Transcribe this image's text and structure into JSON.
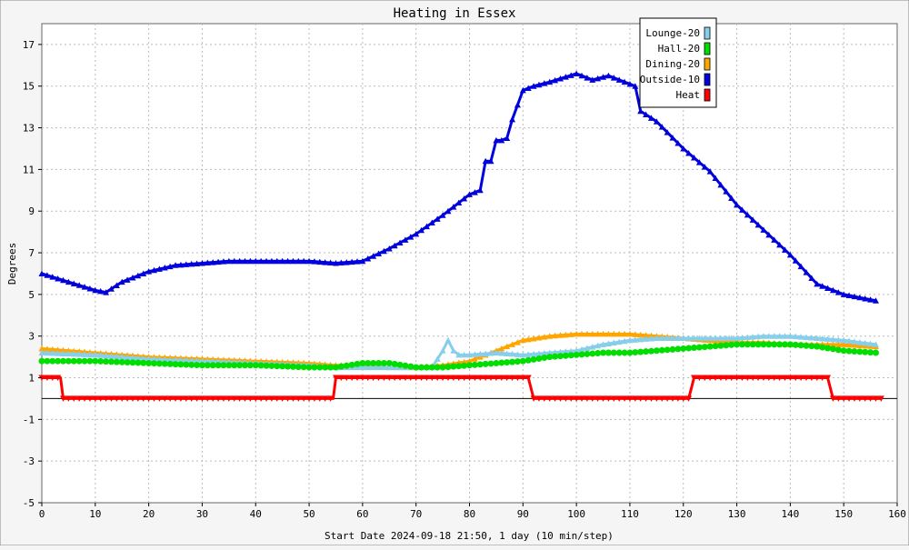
{
  "chart_data": {
    "type": "line",
    "title": "Heating in Essex",
    "xlabel": "Start Date 2024-09-18 21:50, 1 day (10 min/step)",
    "ylabel": "Degrees",
    "xlim": [
      0,
      160
    ],
    "ylim": [
      -5,
      18
    ],
    "xticks": [
      0,
      10,
      20,
      30,
      40,
      50,
      60,
      70,
      80,
      90,
      100,
      110,
      120,
      130,
      140,
      150,
      160
    ],
    "yticks": [
      -5,
      -3,
      -1,
      1,
      3,
      5,
      7,
      9,
      11,
      13,
      15,
      17
    ],
    "grid": true,
    "legend_position": "top-right",
    "series": [
      {
        "name": "Lounge-20",
        "color": "#87ceeb",
        "marker": "triangle",
        "x": [
          0,
          10,
          20,
          30,
          40,
          50,
          55,
          60,
          65,
          70,
          73,
          75,
          76,
          77,
          78,
          80,
          85,
          90,
          95,
          100,
          105,
          110,
          115,
          120,
          125,
          130,
          135,
          140,
          145,
          150,
          156
        ],
        "y": [
          2.2,
          2.1,
          1.9,
          1.8,
          1.7,
          1.6,
          1.5,
          1.5,
          1.5,
          1.5,
          1.5,
          2.3,
          2.8,
          2.3,
          2.1,
          2.1,
          2.2,
          2.1,
          2.2,
          2.3,
          2.6,
          2.8,
          2.9,
          2.9,
          2.9,
          2.9,
          3.0,
          3.0,
          2.9,
          2.8,
          2.6
        ]
      },
      {
        "name": "Hall-20",
        "color": "#00dd00",
        "marker": "circle",
        "x": [
          0,
          10,
          20,
          30,
          40,
          50,
          55,
          60,
          65,
          70,
          75,
          80,
          85,
          90,
          95,
          100,
          105,
          110,
          115,
          120,
          125,
          130,
          135,
          140,
          145,
          150,
          156
        ],
        "y": [
          1.8,
          1.8,
          1.7,
          1.6,
          1.6,
          1.5,
          1.5,
          1.7,
          1.7,
          1.5,
          1.5,
          1.6,
          1.7,
          1.8,
          2.0,
          2.1,
          2.2,
          2.2,
          2.3,
          2.4,
          2.5,
          2.6,
          2.6,
          2.6,
          2.5,
          2.3,
          2.2
        ]
      },
      {
        "name": "Dining-20",
        "color": "#ffa500",
        "marker": "triangle",
        "x": [
          0,
          10,
          20,
          30,
          40,
          50,
          55,
          60,
          65,
          70,
          75,
          80,
          85,
          90,
          95,
          100,
          105,
          110,
          115,
          120,
          125,
          130,
          135,
          140,
          145,
          150,
          156
        ],
        "y": [
          2.4,
          2.2,
          2.0,
          1.9,
          1.8,
          1.7,
          1.6,
          1.6,
          1.5,
          1.5,
          1.6,
          1.8,
          2.3,
          2.8,
          3.0,
          3.1,
          3.1,
          3.1,
          3.0,
          2.9,
          2.8,
          2.7,
          2.7,
          2.6,
          2.6,
          2.6,
          2.5
        ]
      },
      {
        "name": "Outside-10",
        "color": "#0000dd",
        "marker": "triangle",
        "x": [
          0,
          5,
          10,
          12,
          15,
          20,
          25,
          30,
          35,
          40,
          45,
          50,
          55,
          60,
          65,
          70,
          75,
          78,
          80,
          82,
          83,
          84,
          85,
          86,
          87,
          88,
          90,
          92,
          95,
          100,
          103,
          106,
          110,
          111,
          112,
          115,
          120,
          125,
          130,
          135,
          140,
          145,
          150,
          156
        ],
        "y": [
          6.0,
          5.6,
          5.2,
          5.1,
          5.6,
          6.1,
          6.4,
          6.5,
          6.6,
          6.6,
          6.6,
          6.6,
          6.5,
          6.6,
          7.2,
          7.9,
          8.8,
          9.4,
          9.8,
          10.0,
          11.4,
          11.4,
          12.4,
          12.4,
          12.5,
          13.4,
          14.8,
          15.0,
          15.2,
          15.6,
          15.3,
          15.5,
          15.1,
          15.0,
          13.8,
          13.3,
          12.0,
          10.9,
          9.3,
          8.1,
          6.9,
          5.5,
          5.0,
          4.7
        ]
      },
      {
        "name": "Heat",
        "color": "#ff0000",
        "marker": "triangle-down",
        "x": [
          0,
          3.5,
          4,
          54.5,
          55,
          91,
          92,
          121,
          122,
          147,
          148,
          157
        ],
        "y": [
          1,
          1,
          0,
          0,
          1,
          1,
          0,
          0,
          1,
          1,
          0,
          0
        ]
      }
    ]
  }
}
